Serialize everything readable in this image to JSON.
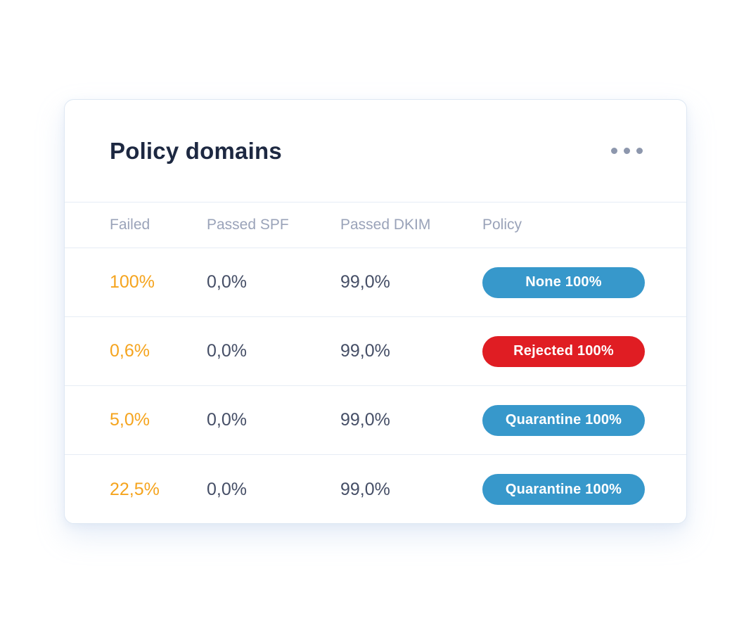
{
  "card": {
    "title": "Policy domains",
    "menu_icon": "ellipsis-icon"
  },
  "table": {
    "columns": [
      "Failed",
      "Passed SPF",
      "Passed DKIM",
      "Policy"
    ],
    "rows": [
      {
        "failed": "100%",
        "passed_spf": "0,0%",
        "passed_dkim": "99,0%",
        "policy": "None 100%",
        "policy_color": "blue"
      },
      {
        "failed": "0,6%",
        "passed_spf": "0,0%",
        "passed_dkim": "99,0%",
        "policy": "Rejected 100%",
        "policy_color": "red"
      },
      {
        "failed": "5,0%",
        "passed_spf": "0,0%",
        "passed_dkim": "99,0%",
        "policy": "Quarantine 100%",
        "policy_color": "blue"
      },
      {
        "failed": "22,5%",
        "passed_spf": "0,0%",
        "passed_dkim": "99,0%",
        "policy": "Quarantine 100%",
        "policy_color": "blue"
      }
    ]
  },
  "colors": {
    "accent_orange": "#f5a41e",
    "badge_blue": "#3798cb",
    "badge_red": "#e01d23",
    "title_text": "#1d2841",
    "data_text": "#454e66",
    "header_text": "#9aa3b9",
    "divider": "#e6ecf5",
    "card_border": "#dee8f3",
    "muted_icon": "#8d97ad"
  }
}
